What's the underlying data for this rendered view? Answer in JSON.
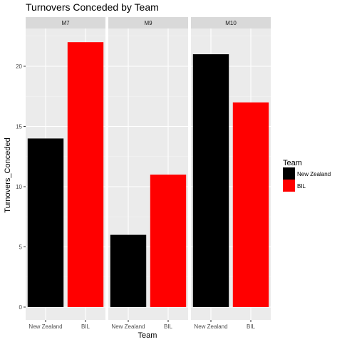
{
  "chart_data": {
    "type": "bar",
    "title": "Turnovers Conceded  by Team",
    "xlabel": "Team",
    "ylabel": "Turnovers_Conceded",
    "ylim": [
      0,
      23
    ],
    "yticks": [
      0,
      5,
      10,
      15,
      20
    ],
    "grid": true,
    "legend": {
      "title": "Team",
      "position": "right",
      "entries": [
        {
          "label": "New Zealand",
          "color": "#000000"
        },
        {
          "label": "BIL",
          "color": "#FF0000"
        }
      ]
    },
    "categories": [
      "New Zealand",
      "BIL"
    ],
    "colors": [
      "#000000",
      "#FF0000"
    ],
    "facets": [
      {
        "label": "M7",
        "values": [
          14,
          22
        ]
      },
      {
        "label": "M9",
        "values": [
          6,
          11
        ]
      },
      {
        "label": "M10",
        "values": [
          21,
          17
        ]
      }
    ]
  }
}
